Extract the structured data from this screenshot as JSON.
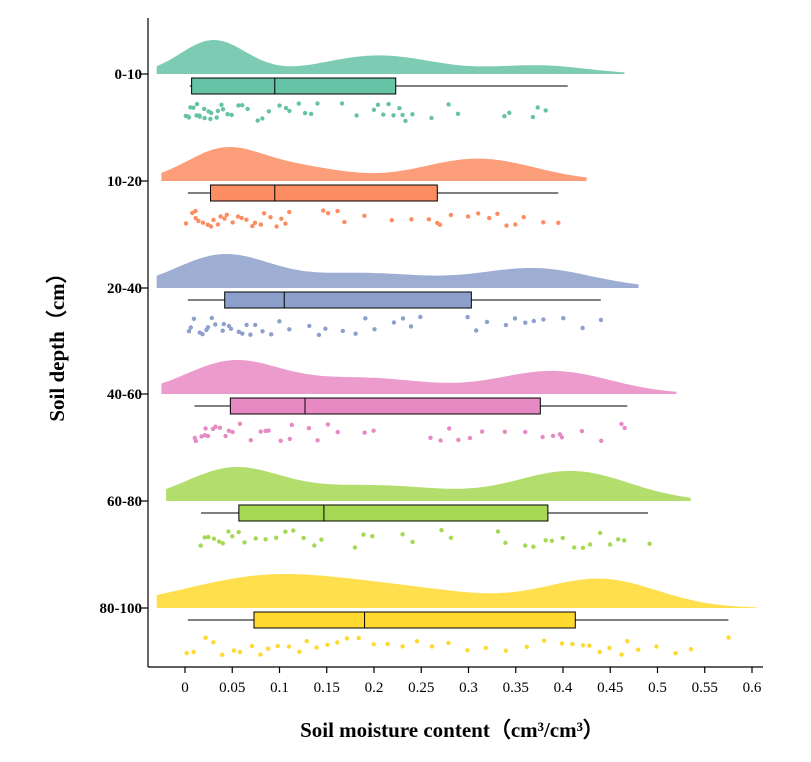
{
  "chart_data": {
    "type": "raincloud",
    "xlabel": "Soil moisture content（cm³/cm³）",
    "ylabel": "Soil depth（cm）",
    "xlim": [
      -0.03,
      0.61
    ],
    "xticks": [
      0,
      0.05,
      0.1,
      0.15,
      0.2,
      0.25,
      0.3,
      0.35,
      0.4,
      0.45,
      0.5,
      0.55,
      0.6
    ],
    "xtick_labels": [
      "0",
      "0.05",
      "0.1",
      "0.15",
      "0.2",
      "0.25",
      "0.3",
      "0.35",
      "0.4",
      "0.45",
      "0.5",
      "0.55",
      "0.6"
    ],
    "series": [
      {
        "name": "0-10",
        "color": "#66c2a5",
        "box": {
          "whisker_low": 0.005,
          "q1": 0.007,
          "median": 0.095,
          "q3": 0.223,
          "whisker_high": 0.405
        },
        "density": {
          "range": [
            -0.03,
            0.465
          ],
          "peaks": [
            [
              0.03,
              0.035,
              1.0
            ],
            [
              0.205,
              0.06,
              0.55
            ],
            [
              0.375,
              0.05,
              0.25
            ]
          ]
        },
        "points": [
          0.002,
          0.004,
          0.005,
          0.007,
          0.009,
          0.011,
          0.013,
          0.015,
          0.017,
          0.019,
          0.022,
          0.024,
          0.027,
          0.029,
          0.032,
          0.035,
          0.038,
          0.041,
          0.045,
          0.05,
          0.055,
          0.06,
          0.068,
          0.075,
          0.082,
          0.09,
          0.098,
          0.105,
          0.112,
          0.12,
          0.128,
          0.135,
          0.14,
          0.165,
          0.18,
          0.2,
          0.205,
          0.21,
          0.215,
          0.22,
          0.225,
          0.23,
          0.235,
          0.24,
          0.26,
          0.28,
          0.29,
          0.34,
          0.345,
          0.37,
          0.375,
          0.38
        ]
      },
      {
        "name": "10-20",
        "color": "#fc8d62",
        "box": {
          "whisker_low": 0.003,
          "q1": 0.027,
          "median": 0.095,
          "q3": 0.267,
          "whisker_high": 0.395
        },
        "density": {
          "range": [
            -0.025,
            0.425
          ],
          "peaks": [
            [
              0.04,
              0.04,
              1.0
            ],
            [
              0.12,
              0.05,
              0.45
            ],
            [
              0.31,
              0.06,
              0.75
            ]
          ]
        },
        "points": [
          0.003,
          0.006,
          0.01,
          0.013,
          0.016,
          0.02,
          0.023,
          0.026,
          0.03,
          0.033,
          0.037,
          0.041,
          0.045,
          0.05,
          0.055,
          0.06,
          0.065,
          0.07,
          0.075,
          0.08,
          0.085,
          0.09,
          0.095,
          0.1,
          0.105,
          0.11,
          0.145,
          0.15,
          0.16,
          0.17,
          0.19,
          0.22,
          0.24,
          0.26,
          0.265,
          0.27,
          0.28,
          0.3,
          0.31,
          0.32,
          0.33,
          0.34,
          0.35,
          0.36,
          0.38,
          0.395
        ]
      },
      {
        "name": "20-40",
        "color": "#8da0cb",
        "box": {
          "whisker_low": 0.003,
          "q1": 0.042,
          "median": 0.105,
          "q3": 0.303,
          "whisker_high": 0.44
        },
        "density": {
          "range": [
            -0.03,
            0.48
          ],
          "peaks": [
            [
              0.04,
              0.05,
              1.0
            ],
            [
              0.19,
              0.07,
              0.45
            ],
            [
              0.37,
              0.06,
              0.6
            ]
          ]
        },
        "points": [
          0.003,
          0.006,
          0.01,
          0.014,
          0.018,
          0.022,
          0.026,
          0.03,
          0.034,
          0.038,
          0.042,
          0.046,
          0.05,
          0.055,
          0.06,
          0.065,
          0.07,
          0.075,
          0.08,
          0.09,
          0.1,
          0.11,
          0.13,
          0.14,
          0.15,
          0.165,
          0.18,
          0.19,
          0.2,
          0.22,
          0.23,
          0.24,
          0.25,
          0.3,
          0.31,
          0.32,
          0.34,
          0.35,
          0.36,
          0.37,
          0.38,
          0.4,
          0.42,
          0.44
        ]
      },
      {
        "name": "40-60",
        "color": "#e78ac3",
        "box": {
          "whisker_low": 0.01,
          "q1": 0.048,
          "median": 0.127,
          "q3": 0.376,
          "whisker_high": 0.468
        },
        "density": {
          "range": [
            -0.025,
            0.52
          ],
          "peaks": [
            [
              0.05,
              0.05,
              1.0
            ],
            [
              0.19,
              0.07,
              0.5
            ],
            [
              0.39,
              0.06,
              0.72
            ]
          ]
        },
        "points": [
          0.01,
          0.013,
          0.016,
          0.02,
          0.023,
          0.026,
          0.03,
          0.033,
          0.037,
          0.041,
          0.045,
          0.05,
          0.06,
          0.07,
          0.08,
          0.085,
          0.09,
          0.1,
          0.11,
          0.115,
          0.13,
          0.14,
          0.15,
          0.16,
          0.19,
          0.2,
          0.26,
          0.27,
          0.28,
          0.29,
          0.3,
          0.315,
          0.34,
          0.36,
          0.38,
          0.39,
          0.395,
          0.4,
          0.42,
          0.44,
          0.46,
          0.465
        ]
      },
      {
        "name": "60-80",
        "color": "#a6d854",
        "box": {
          "whisker_low": 0.017,
          "q1": 0.057,
          "median": 0.147,
          "q3": 0.384,
          "whisker_high": 0.49
        },
        "density": {
          "range": [
            -0.02,
            0.535
          ],
          "peaks": [
            [
              0.05,
              0.05,
              1.0
            ],
            [
              0.2,
              0.08,
              0.5
            ],
            [
              0.41,
              0.06,
              0.95
            ]
          ]
        },
        "points": [
          0.017,
          0.02,
          0.025,
          0.03,
          0.035,
          0.04,
          0.045,
          0.05,
          0.055,
          0.065,
          0.075,
          0.085,
          0.095,
          0.105,
          0.115,
          0.125,
          0.135,
          0.145,
          0.18,
          0.19,
          0.2,
          0.23,
          0.24,
          0.27,
          0.28,
          0.33,
          0.34,
          0.36,
          0.37,
          0.38,
          0.39,
          0.4,
          0.41,
          0.42,
          0.43,
          0.44,
          0.45,
          0.46,
          0.465,
          0.49
        ]
      },
      {
        "name": "80-100",
        "color": "#ffd92f",
        "box": {
          "whisker_low": 0.003,
          "q1": 0.073,
          "median": 0.19,
          "q3": 0.413,
          "whisker_high": 0.575
        },
        "density": {
          "range": [
            -0.03,
            0.605
          ],
          "peaks": [
            [
              0.09,
              0.09,
              1.0
            ],
            [
              0.25,
              0.08,
              0.45
            ],
            [
              0.44,
              0.06,
              0.9
            ]
          ]
        },
        "points": [
          0.003,
          0.01,
          0.02,
          0.03,
          0.04,
          0.05,
          0.06,
          0.07,
          0.08,
          0.09,
          0.1,
          0.11,
          0.12,
          0.13,
          0.14,
          0.15,
          0.16,
          0.17,
          0.185,
          0.2,
          0.215,
          0.23,
          0.245,
          0.26,
          0.28,
          0.3,
          0.32,
          0.34,
          0.36,
          0.38,
          0.4,
          0.41,
          0.42,
          0.43,
          0.44,
          0.45,
          0.46,
          0.47,
          0.48,
          0.5,
          0.52,
          0.535,
          0.575
        ]
      }
    ]
  }
}
